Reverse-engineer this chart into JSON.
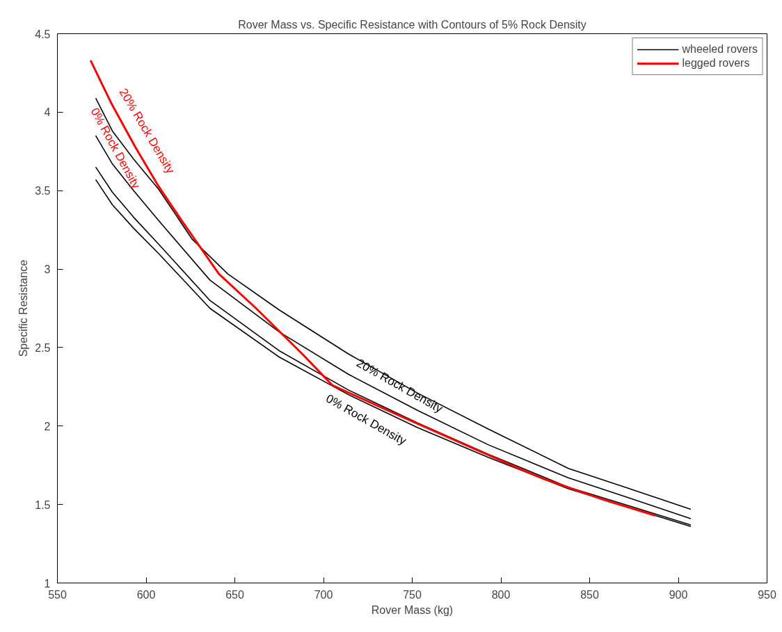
{
  "chart_data": {
    "type": "line",
    "title": "Rover Mass vs. Specific Resistance with Contours of 5% Rock Density",
    "xlabel": "Rover Mass (kg)",
    "ylabel": "Specific Resistance",
    "xlim": [
      550,
      950
    ],
    "ylim": [
      1,
      4.5
    ],
    "xticks": [
      550,
      600,
      650,
      700,
      750,
      800,
      850,
      900,
      950
    ],
    "yticks": [
      1,
      1.5,
      2,
      2.5,
      3,
      3.5,
      4,
      4.5
    ],
    "grid": false,
    "legend": "top right",
    "line_style": "solid",
    "marker": "none",
    "series": [
      {
        "name": "wheeled rovers",
        "color": "#000000",
        "x": [
          571.6,
          581,
          593,
          607,
          626,
          646,
          675,
          714,
          753,
          793,
          838,
          870,
          907
        ],
        "values": [
          4.09,
          3.88,
          3.7,
          3.51,
          3.19,
          2.97,
          2.74,
          2.46,
          2.21,
          1.98,
          1.73,
          1.61,
          1.47
        ]
      },
      {
        "color": "#000000",
        "x": [
          571.6,
          581,
          593,
          607,
          636,
          675,
          714,
          753,
          793,
          838,
          870,
          907
        ],
        "values": [
          3.85,
          3.67,
          3.5,
          3.31,
          2.93,
          2.6,
          2.33,
          2.1,
          1.88,
          1.67,
          1.55,
          1.41
        ]
      },
      {
        "color": "#000000",
        "x": [
          571.6,
          581,
          593,
          607,
          636,
          675,
          714,
          753,
          793,
          838,
          870,
          907
        ],
        "values": [
          3.65,
          3.49,
          3.33,
          3.16,
          2.8,
          2.48,
          2.23,
          2.02,
          1.82,
          1.61,
          1.5,
          1.37
        ]
      },
      {
        "color": "#000000",
        "x": [
          571.6,
          581,
          593,
          607,
          636,
          675,
          714,
          753,
          793,
          838,
          870,
          907
        ],
        "values": [
          3.57,
          3.41,
          3.26,
          3.1,
          2.75,
          2.44,
          2.2,
          1.99,
          1.8,
          1.6,
          1.49,
          1.36
        ]
      },
      {
        "name": "legged rovers",
        "color": "#ff0000",
        "x": [
          568.7,
          580.7,
          593.8,
          606.9,
          620,
          641,
          662,
          688,
          705,
          740,
          780,
          812,
          825,
          858,
          887
        ],
        "values": [
          4.33,
          4.05,
          3.78,
          3.53,
          3.31,
          2.97,
          2.75,
          2.46,
          2.26,
          2.08,
          1.88,
          1.72,
          1.66,
          1.53,
          1.43
        ]
      }
    ],
    "annotations": [
      "20% Rock Density",
      "0% Rock Density",
      "20% Rock Density",
      "0% Rock Density"
    ]
  }
}
